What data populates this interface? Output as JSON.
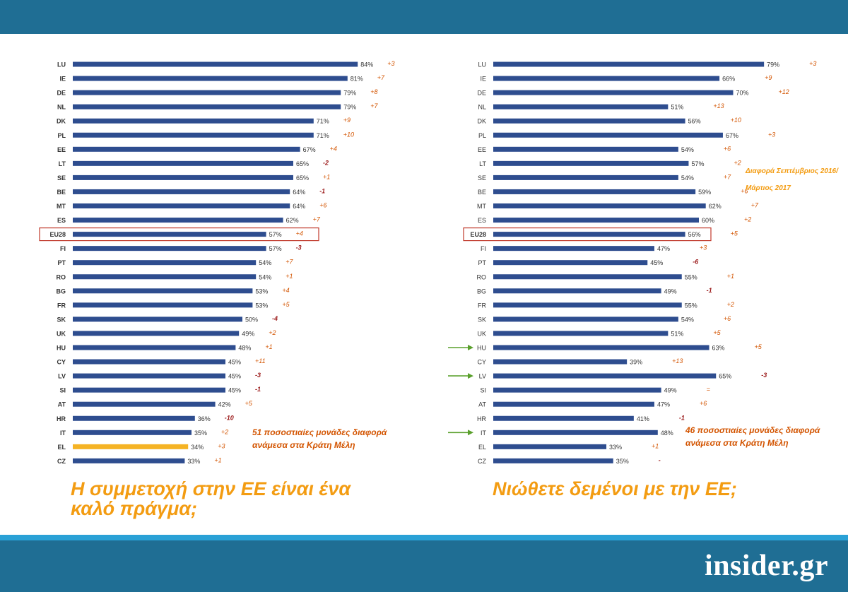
{
  "colors": {
    "bar": "#2e4d8f",
    "highlight_bar": "#f5b324",
    "band": "#1f6e94",
    "accent": "#f39c12",
    "diff_positive": "#d35400",
    "diff_negative": "#9b1a1a",
    "box": "#c0392b",
    "arrow": "#5aa02c"
  },
  "logo": "insider.gr",
  "left_chart": {
    "heading": "Η συμμετοχή στην ΕΕ είναι ένα καλό πράγμα;",
    "note": "51 ποσοστιαίες μονάδες διαφορά ανάμεσα στα Κράτη Μέλη"
  },
  "right_chart": {
    "heading": "Νιώθετε δεμένοι με την ΕΕ;",
    "note": "46 ποσοστιαίες μονάδες διαφορά ανάμεσα στα Κράτη Μέλη",
    "legend_line1": "Διαφορά Σεπτέμβριος 2016/",
    "legend_line2": "Μάρτιος 2017"
  },
  "chart_data": [
    {
      "type": "bar",
      "orientation": "horizontal",
      "title": "Η συμμετοχή στην ΕΕ είναι ένα καλό πράγμα;",
      "categories": [
        "LU",
        "IE",
        "DE",
        "NL",
        "DK",
        "PL",
        "EE",
        "LT",
        "SE",
        "BE",
        "MT",
        "ES",
        "EU28",
        "FI",
        "PT",
        "RO",
        "BG",
        "FR",
        "SK",
        "UK",
        "HU",
        "CY",
        "LV",
        "SI",
        "AT",
        "HR",
        "IT",
        "EL",
        "CZ"
      ],
      "values": [
        84,
        81,
        79,
        79,
        71,
        71,
        67,
        65,
        65,
        64,
        64,
        62,
        57,
        57,
        54,
        54,
        53,
        53,
        50,
        49,
        48,
        45,
        45,
        45,
        42,
        36,
        35,
        34,
        33
      ],
      "value_labels": [
        "84%",
        "81%",
        "79%",
        "79%",
        "71%",
        "71%",
        "67%",
        "65%",
        "65%",
        "64%",
        "64%",
        "62%",
        "57%",
        "57%",
        "54%",
        "54%",
        "53%",
        "53%",
        "50%",
        "49%",
        "48%",
        "45%",
        "45%",
        "45%",
        "42%",
        "36%",
        "35%",
        "34%",
        "33%"
      ],
      "differences": [
        "+3",
        "+7",
        "+8",
        "+7",
        "+9",
        "+10",
        "+4",
        "-2",
        "+1",
        "-1",
        "+6",
        "+7",
        "+4",
        "-3",
        "+7",
        "+1",
        "+4",
        "+5",
        "-4",
        "+2",
        "+1",
        "+11",
        "-3",
        "-1",
        "+5",
        "-10",
        "+2",
        "+3",
        "+1"
      ],
      "highlighted": "EU28",
      "accent_bar": "EL",
      "xlim": [
        0,
        100
      ]
    },
    {
      "type": "bar",
      "orientation": "horizontal",
      "title": "Νιώθετε δεμένοι με την ΕΕ;",
      "categories": [
        "LU",
        "IE",
        "DE",
        "NL",
        "DK",
        "PL",
        "EE",
        "LT",
        "SE",
        "BE",
        "MT",
        "ES",
        "EU28",
        "FI",
        "PT",
        "RO",
        "BG",
        "FR",
        "SK",
        "UK",
        "HU",
        "CY",
        "LV",
        "SI",
        "AT",
        "HR",
        "IT",
        "EL",
        "CZ"
      ],
      "values": [
        79,
        66,
        70,
        51,
        56,
        67,
        54,
        57,
        54,
        59,
        62,
        60,
        56,
        47,
        45,
        55,
        49,
        55,
        54,
        51,
        63,
        39,
        65,
        49,
        47,
        41,
        48,
        33,
        35
      ],
      "value_labels": [
        "79%",
        "66%",
        "70%",
        "51%",
        "56%",
        "67%",
        "54%",
        "57%",
        "54%",
        "59%",
        "62%",
        "60%",
        "56%",
        "47%",
        "45%",
        "55%",
        "49%",
        "55%",
        "54%",
        "51%",
        "63%",
        "39%",
        "65%",
        "49%",
        "47%",
        "41%",
        "48%",
        "33%",
        "35%"
      ],
      "differences": [
        "+3",
        "+9",
        "+12",
        "+13",
        "+10",
        "+3",
        "+6",
        "+2",
        "+7",
        "+6",
        "+7",
        "+2",
        "+5",
        "+3",
        "-6",
        "+1",
        "-1",
        "+2",
        "+6",
        "+5",
        "+5",
        "+13",
        "-3",
        "=",
        "+6",
        "-1",
        "",
        "+1",
        "-"
      ],
      "highlighted": "EU28",
      "arrows": [
        "HU",
        "LV",
        "IT"
      ],
      "legend": "Διαφορά Σεπτέμβριος 2016/ Μάρτιος 2017",
      "xlim": [
        0,
        100
      ]
    }
  ]
}
